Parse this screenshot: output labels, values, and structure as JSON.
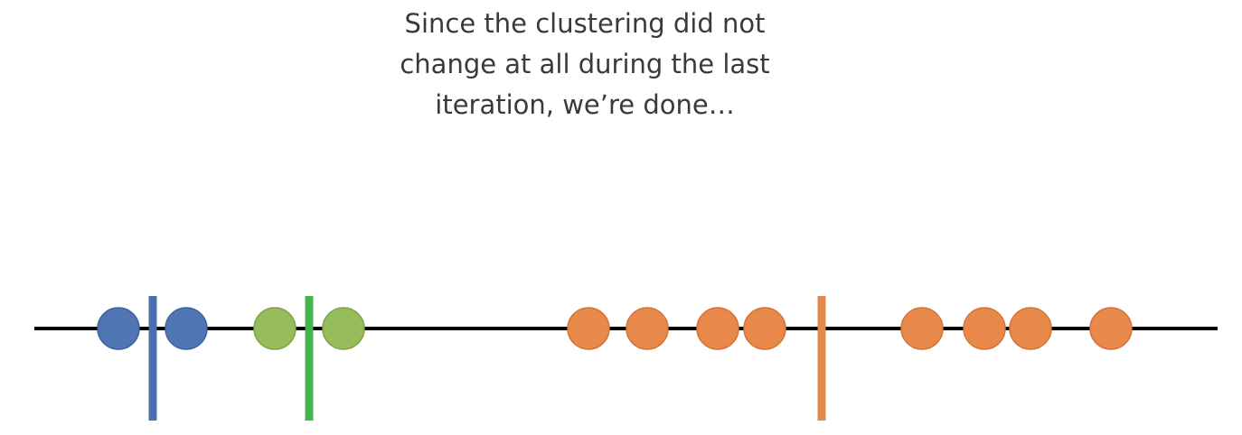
{
  "caption": {
    "lines": [
      "Since the clustering did not",
      "change at all during the last",
      "iteration, we’re done…"
    ]
  },
  "clusters": [
    {
      "name": "blue",
      "point_color": "#4f76b3",
      "point_edge": "#3f62a0",
      "centroid_color": "#4a70b2",
      "centroid": 169,
      "points": [
        131,
        206
      ]
    },
    {
      "name": "green",
      "point_color": "#95bb5a",
      "point_edge": "#7fa347",
      "centroid_color": "#44b54b",
      "centroid": 342,
      "points": [
        304,
        380
      ]
    },
    {
      "name": "orange",
      "point_color": "#e8884a",
      "point_edge": "#d4743a",
      "centroid_color": "#e58a4c",
      "centroid": 909,
      "points": [
        651,
        716,
        794,
        846,
        1020,
        1089,
        1140,
        1229
      ]
    }
  ],
  "axis_color": "#000000"
}
